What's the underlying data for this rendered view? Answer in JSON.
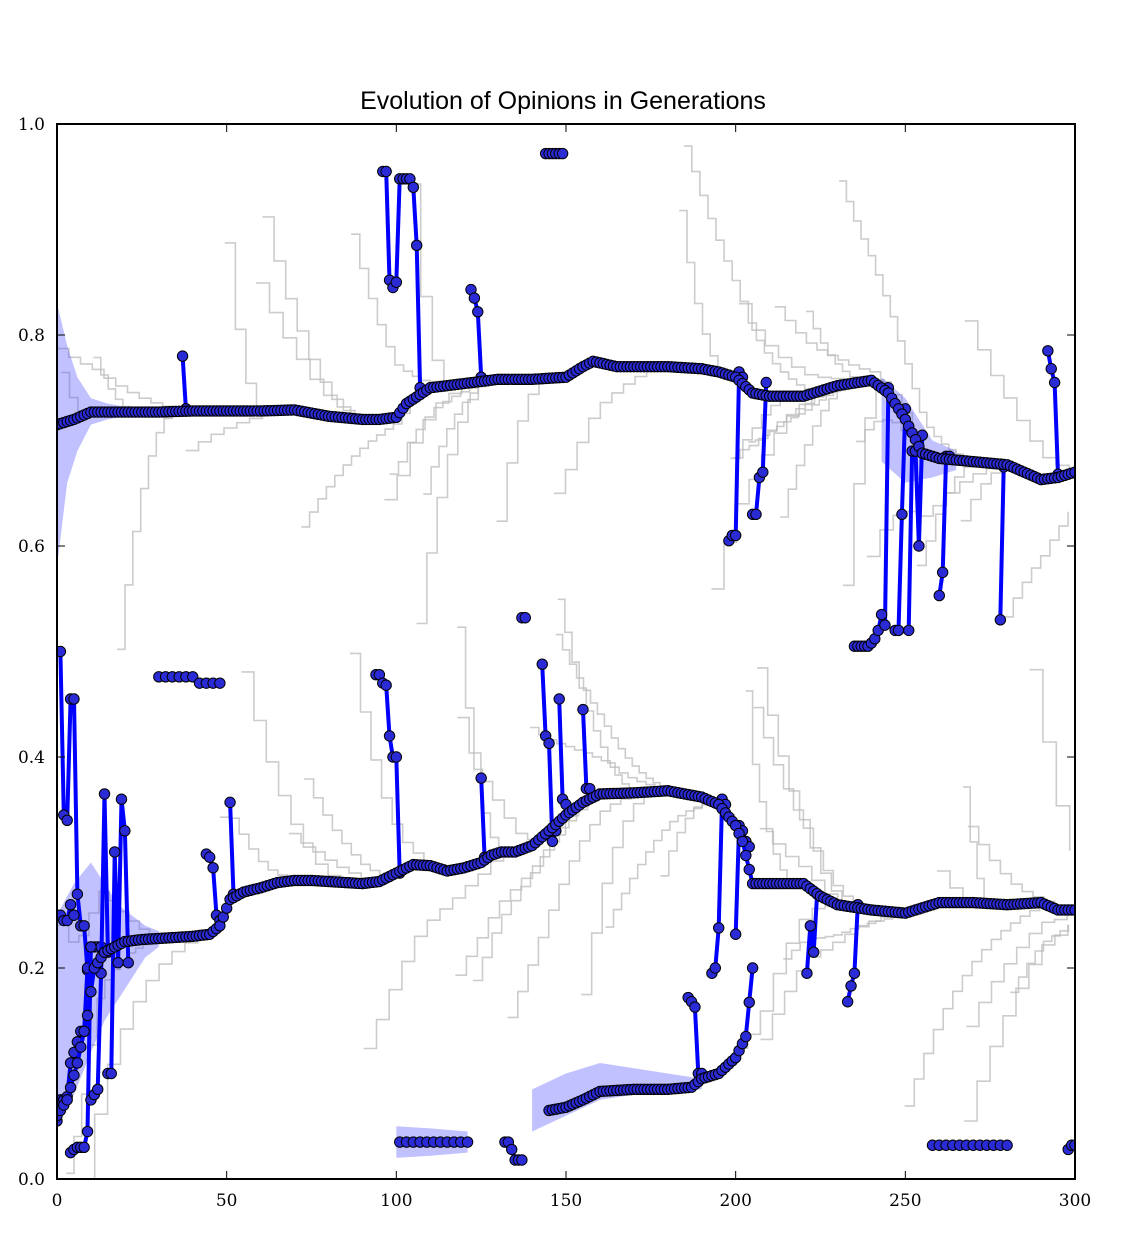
{
  "chart_data": {
    "type": "line",
    "title": "Evolution of Opinions in Generations",
    "xlabel": "",
    "ylabel": "",
    "xlim": [
      0,
      300
    ],
    "ylim": [
      0,
      1.0
    ],
    "x_ticks": [
      "0",
      "50",
      "100",
      "150",
      "200",
      "250",
      "300"
    ],
    "y_ticks": [
      "0.0",
      "0.2",
      "0.4",
      "0.6",
      "0.8",
      "1.0"
    ],
    "grid": false,
    "legend": "none",
    "colors": {
      "mean_line": "#0000ff",
      "marker_fill": "#2b2bd6",
      "band": "#4d4dff",
      "traces": "#bbbbbb"
    },
    "series": [
      {
        "label_role": "upper-cluster mean",
        "x": [
          0,
          5,
          10,
          20,
          30,
          40,
          50,
          60,
          70,
          80,
          90,
          95,
          100,
          103,
          110,
          120,
          130,
          140,
          150,
          155,
          158,
          165,
          180,
          190,
          195,
          200,
          205,
          210,
          220,
          230,
          240,
          245,
          250,
          255,
          260,
          270,
          280,
          290,
          295,
          300
        ],
        "y": [
          0.715,
          0.72,
          0.727,
          0.727,
          0.727,
          0.728,
          0.728,
          0.728,
          0.729,
          0.723,
          0.72,
          0.72,
          0.722,
          0.735,
          0.75,
          0.754,
          0.758,
          0.758,
          0.76,
          0.77,
          0.775,
          0.77,
          0.77,
          0.768,
          0.765,
          0.76,
          0.745,
          0.742,
          0.742,
          0.752,
          0.757,
          0.745,
          0.72,
          0.688,
          0.683,
          0.68,
          0.677,
          0.663,
          0.665,
          0.67
        ]
      },
      {
        "label_role": "lower-cluster mean",
        "x": [
          0,
          3,
          6,
          9,
          11,
          14,
          17,
          20,
          25,
          30,
          35,
          40,
          45,
          48,
          51,
          55,
          60,
          65,
          70,
          75,
          80,
          85,
          90,
          95,
          100,
          105,
          110,
          115,
          120,
          125,
          128,
          131,
          135,
          140,
          145,
          150,
          155,
          160,
          170,
          180,
          190,
          195,
          200,
          202,
          205,
          210,
          220,
          225,
          230,
          240,
          250,
          260,
          270,
          280,
          290,
          295,
          300
        ],
        "y": [
          0.06,
          0.075,
          0.11,
          0.155,
          0.2,
          0.215,
          0.22,
          0.225,
          0.227,
          0.228,
          0.229,
          0.23,
          0.232,
          0.24,
          0.265,
          0.272,
          0.276,
          0.281,
          0.283,
          0.283,
          0.282,
          0.281,
          0.28,
          0.282,
          0.29,
          0.298,
          0.297,
          0.292,
          0.295,
          0.3,
          0.307,
          0.31,
          0.31,
          0.316,
          0.33,
          0.345,
          0.357,
          0.365,
          0.366,
          0.368,
          0.362,
          0.355,
          0.335,
          0.32,
          0.28,
          0.28,
          0.28,
          0.268,
          0.26,
          0.255,
          0.252,
          0.262,
          0.262,
          0.26,
          0.262,
          0.255,
          0.255
        ]
      },
      {
        "label_role": "low-opinion group",
        "x": [
          145,
          150,
          155,
          160,
          170,
          180,
          187,
          190,
          195,
          200,
          203,
          205
        ],
        "y": [
          0.065,
          0.068,
          0.075,
          0.083,
          0.085,
          0.085,
          0.087,
          0.095,
          0.1,
          0.115,
          0.135,
          0.2
        ]
      }
    ],
    "outlier_paths": [
      {
        "x": [
          37,
          38,
          38
        ],
        "y": [
          0.78,
          0.73,
          0.73
        ]
      },
      {
        "x": [
          96,
          97,
          98,
          99,
          100,
          101,
          102,
          103,
          104,
          105,
          106,
          107
        ],
        "y": [
          0.955,
          0.955,
          0.852,
          0.845,
          0.85,
          0.948,
          0.948,
          0.948,
          0.948,
          0.94,
          0.885,
          0.75
        ]
      },
      {
        "x": [
          122,
          123,
          124,
          125
        ],
        "y": [
          0.843,
          0.835,
          0.822,
          0.76
        ]
      },
      {
        "x": [
          144,
          145,
          146,
          147,
          148,
          149
        ],
        "y": [
          0.972,
          0.972,
          0.972,
          0.972,
          0.972,
          0.972
        ]
      },
      {
        "x": [
          198,
          199,
          200,
          201,
          202
        ],
        "y": [
          0.605,
          0.61,
          0.61,
          0.765,
          0.76
        ]
      },
      {
        "x": [
          205,
          206,
          207,
          208,
          209
        ],
        "y": [
          0.63,
          0.63,
          0.665,
          0.67,
          0.755
        ]
      },
      {
        "x": [
          235,
          236,
          237,
          238,
          239,
          240,
          241,
          242,
          243,
          244,
          245
        ],
        "y": [
          0.505,
          0.505,
          0.505,
          0.505,
          0.505,
          0.508,
          0.512,
          0.52,
          0.535,
          0.525,
          0.75
        ]
      },
      {
        "x": [
          247,
          248,
          249,
          250
        ],
        "y": [
          0.52,
          0.52,
          0.63,
          0.73
        ]
      },
      {
        "x": [
          251,
          252,
          253,
          254,
          255
        ],
        "y": [
          0.52,
          0.69,
          0.69,
          0.6,
          0.705
        ]
      },
      {
        "x": [
          260,
          261,
          262,
          263
        ],
        "y": [
          0.553,
          0.575,
          0.685,
          0.685
        ]
      },
      {
        "x": [
          278,
          279
        ],
        "y": [
          0.53,
          0.675
        ]
      },
      {
        "x": [
          292,
          293,
          294,
          295
        ],
        "y": [
          0.785,
          0.768,
          0.755,
          0.668
        ]
      },
      {
        "x": [
          1,
          2,
          3,
          4,
          5,
          6,
          7,
          8,
          9
        ],
        "y": [
          0.5,
          0.345,
          0.34,
          0.455,
          0.455,
          0.27,
          0.24,
          0.24,
          0.198
        ]
      },
      {
        "x": [
          0,
          1,
          2,
          3,
          4,
          5
        ],
        "y": [
          0.25,
          0.25,
          0.245,
          0.245,
          0.26,
          0.25
        ]
      },
      {
        "x": [
          0,
          1,
          2,
          3,
          4,
          5,
          6,
          7,
          8,
          9,
          10,
          11,
          12,
          13
        ],
        "y": [
          0.055,
          0.075,
          0.075,
          0.078,
          0.11,
          0.12,
          0.13,
          0.14,
          0.14,
          0.2,
          0.22,
          0.22,
          0.22,
          0.22
        ]
      },
      {
        "x": [
          4,
          5,
          6,
          7,
          8,
          9,
          10
        ],
        "y": [
          0.025,
          0.028,
          0.03,
          0.03,
          0.03,
          0.045,
          0.22
        ]
      },
      {
        "x": [
          10,
          11,
          12,
          13,
          14,
          15
        ],
        "y": [
          0.075,
          0.08,
          0.085,
          0.195,
          0.365,
          0.215
        ]
      },
      {
        "x": [
          15,
          16,
          17,
          18,
          19,
          20,
          21
        ],
        "y": [
          0.1,
          0.1,
          0.31,
          0.205,
          0.36,
          0.33,
          0.205
        ]
      },
      {
        "x": [
          30,
          32,
          34,
          36,
          38,
          40,
          42,
          44,
          46,
          48
        ],
        "y": [
          0.476,
          0.476,
          0.476,
          0.476,
          0.476,
          0.476,
          0.47,
          0.47,
          0.47,
          0.47
        ]
      },
      {
        "x": [
          44,
          45,
          46,
          47,
          48
        ],
        "y": [
          0.308,
          0.305,
          0.295,
          0.25,
          0.245
        ]
      },
      {
        "x": [
          51,
          52
        ],
        "y": [
          0.357,
          0.27
        ]
      },
      {
        "x": [
          94,
          95,
          96,
          97,
          98,
          99,
          100,
          101
        ],
        "y": [
          0.478,
          0.478,
          0.47,
          0.468,
          0.42,
          0.4,
          0.4,
          0.29
        ]
      },
      {
        "x": [
          125,
          126,
          127
        ],
        "y": [
          0.38,
          0.305,
          0.305
        ]
      },
      {
        "x": [
          137,
          138
        ],
        "y": [
          0.532,
          0.532
        ]
      },
      {
        "x": [
          143,
          144,
          145,
          146,
          147
        ],
        "y": [
          0.488,
          0.42,
          0.413,
          0.32,
          0.33
        ]
      },
      {
        "x": [
          148,
          149,
          150
        ],
        "y": [
          0.455,
          0.36,
          0.355
        ]
      },
      {
        "x": [
          155,
          156,
          157
        ],
        "y": [
          0.445,
          0.37,
          0.37
        ]
      },
      {
        "x": [
          101,
          103,
          105,
          107,
          109,
          111,
          113,
          115,
          117,
          119,
          121
        ],
        "y": [
          0.035,
          0.035,
          0.035,
          0.035,
          0.035,
          0.035,
          0.035,
          0.035,
          0.035,
          0.035,
          0.035
        ]
      },
      {
        "x": [
          132,
          133,
          134,
          135,
          136,
          137
        ],
        "y": [
          0.035,
          0.035,
          0.028,
          0.018,
          0.018,
          0.018
        ]
      },
      {
        "x": [
          186,
          187,
          188,
          189,
          190
        ],
        "y": [
          0.172,
          0.168,
          0.163,
          0.1,
          0.1
        ]
      },
      {
        "x": [
          193,
          194,
          195,
          196,
          197
        ],
        "y": [
          0.195,
          0.2,
          0.238,
          0.36,
          0.355
        ]
      },
      {
        "x": [
          200,
          201,
          202,
          203,
          204
        ],
        "y": [
          0.232,
          0.335,
          0.33,
          0.32,
          0.315
        ]
      },
      {
        "x": [
          221,
          222,
          223,
          224
        ],
        "y": [
          0.195,
          0.24,
          0.215,
          0.27
        ]
      },
      {
        "x": [
          233,
          234,
          235,
          236
        ],
        "y": [
          0.168,
          0.183,
          0.195,
          0.26
        ]
      },
      {
        "x": [
          258,
          260,
          262,
          264,
          266,
          268,
          270,
          272,
          274,
          276,
          278,
          280
        ],
        "y": [
          0.032,
          0.032,
          0.032,
          0.032,
          0.032,
          0.032,
          0.032,
          0.032,
          0.032,
          0.032,
          0.032,
          0.032
        ]
      },
      {
        "x": [
          298,
          299,
          300
        ],
        "y": [
          0.028,
          0.032,
          0.032
        ]
      }
    ],
    "bands": [
      {
        "x": [
          0,
          3,
          6,
          10,
          15,
          20,
          30
        ],
        "low": [
          0.58,
          0.66,
          0.69,
          0.715,
          0.72,
          0.723,
          0.724
        ],
        "high": [
          0.83,
          0.79,
          0.76,
          0.74,
          0.735,
          0.732,
          0.73
        ]
      },
      {
        "x": [
          0,
          5,
          10,
          14,
          18,
          22,
          26,
          30
        ],
        "low": [
          0.05,
          0.08,
          0.12,
          0.15,
          0.17,
          0.19,
          0.21,
          0.22
        ],
        "high": [
          0.25,
          0.28,
          0.3,
          0.28,
          0.26,
          0.25,
          0.24,
          0.235
        ]
      },
      {
        "x": [
          140,
          150,
          160,
          170,
          180,
          190
        ],
        "low": [
          0.045,
          0.06,
          0.075,
          0.08,
          0.083,
          0.085
        ],
        "high": [
          0.085,
          0.1,
          0.11,
          0.105,
          0.1,
          0.095
        ]
      },
      {
        "x": [
          100,
          110,
          121
        ],
        "low": [
          0.02,
          0.022,
          0.025
        ],
        "high": [
          0.05,
          0.048,
          0.045
        ]
      },
      {
        "x": [
          243,
          250,
          258,
          265
        ],
        "low": [
          0.68,
          0.66,
          0.665,
          0.672
        ],
        "high": [
          0.76,
          0.74,
          0.7,
          0.69
        ]
      }
    ]
  }
}
